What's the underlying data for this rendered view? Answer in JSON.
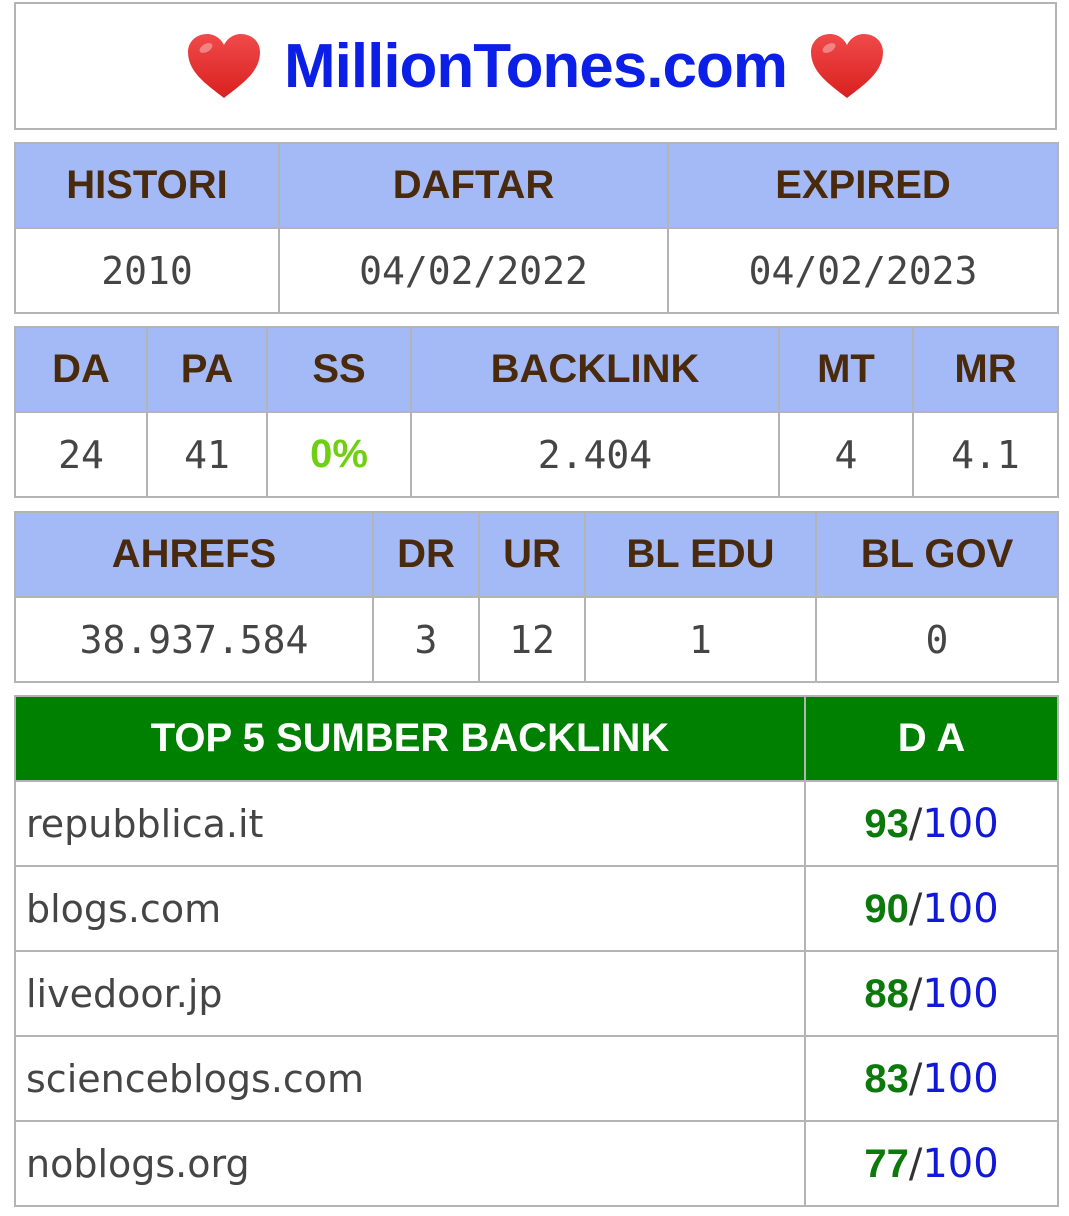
{
  "header": {
    "site_title": "MillionTones.com",
    "left_icon": "heart-icon",
    "right_icon": "heart-icon"
  },
  "colors": {
    "title": "#0b1fe6",
    "header_bg": "#a3baf6",
    "header_text": "#4a2a0c",
    "top5_header_bg": "#008000",
    "ss_value": "#6fcf11",
    "da_value": "#0b7a0b",
    "da_max": "#1118d8",
    "heart": "#e8302f"
  },
  "domain_info": {
    "labels": {
      "histori": "HISTORI",
      "daftar": "DAFTAR",
      "expired": "EXPIRED"
    },
    "values": {
      "histori": "2010",
      "daftar": "04/02/2022",
      "expired": "04/02/2023"
    }
  },
  "moz_metrics": {
    "labels": {
      "da": "DA",
      "pa": "PA",
      "ss": "SS",
      "backlink": "BACKLINK",
      "mt": "MT",
      "mr": "MR"
    },
    "values": {
      "da": "24",
      "pa": "41",
      "ss": "0%",
      "backlink": "2.404",
      "mt": "4",
      "mr": "4.1"
    }
  },
  "ahrefs_metrics": {
    "labels": {
      "ahrefs": "AHREFS",
      "dr": "DR",
      "ur": "UR",
      "bl_edu": "BL EDU",
      "bl_gov": "BL GOV"
    },
    "values": {
      "ahrefs": "38.937.584",
      "dr": "3",
      "ur": "12",
      "bl_edu": "1",
      "bl_gov": "0"
    }
  },
  "top_backlinks": {
    "header": "TOP 5 SUMBER BACKLINK",
    "da_header": "D A",
    "separator": "/",
    "max": "100",
    "rows": [
      {
        "source": "repubblica.it",
        "da": "93"
      },
      {
        "source": "blogs.com",
        "da": "90"
      },
      {
        "source": "livedoor.jp",
        "da": "88"
      },
      {
        "source": "scienceblogs.com",
        "da": "83"
      },
      {
        "source": "noblogs.org",
        "da": "77"
      }
    ]
  }
}
